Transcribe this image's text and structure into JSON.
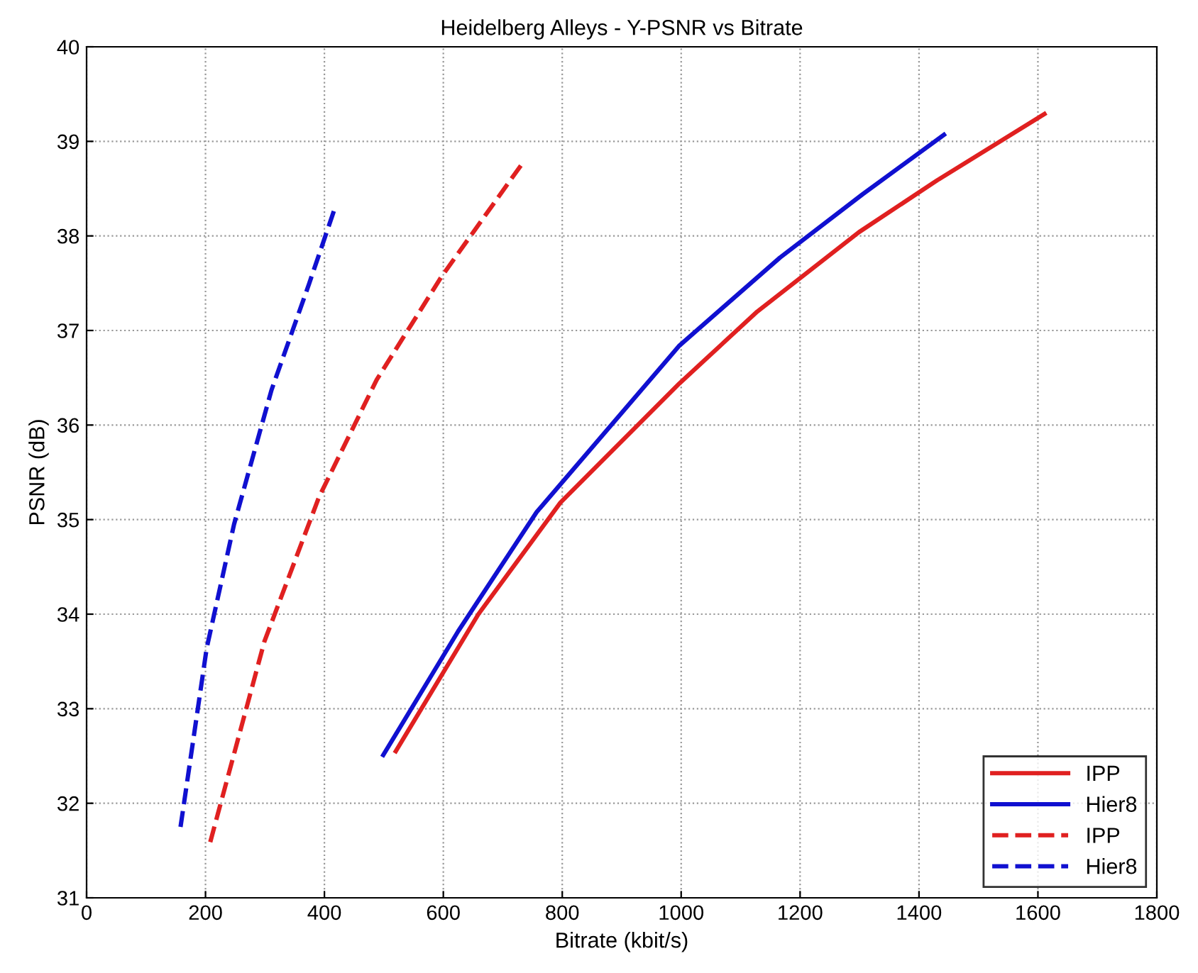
{
  "chart_data": {
    "type": "line",
    "title": "Heidelberg Alleys - Y-PSNR vs Bitrate",
    "xlabel": "Bitrate (kbit/s)",
    "ylabel": "PSNR (dB)",
    "xlim": [
      0,
      1800
    ],
    "xticks": [
      0,
      200,
      400,
      600,
      800,
      1000,
      1200,
      1400,
      1600,
      1800
    ],
    "ylim": [
      31,
      40
    ],
    "yticks": [
      31,
      32,
      33,
      34,
      35,
      36,
      37,
      38,
      39,
      40
    ],
    "grid": true,
    "legend": "bottom right",
    "marker": "none",
    "series": [
      {
        "name": "IPP",
        "color": "#e02020",
        "line_style": "solid",
        "x": [
          520,
          659,
          797,
          997,
          1128,
          1299,
          1431,
          1611
        ],
        "values": [
          32.55,
          34.0,
          35.18,
          36.44,
          37.2,
          38.04,
          38.59,
          39.29
        ]
      },
      {
        "name": "Hier8",
        "color": "#1010d0",
        "line_style": "solid",
        "x": [
          499,
          625,
          757,
          997,
          1166,
          1305,
          1442
        ],
        "values": [
          32.51,
          33.82,
          35.08,
          36.84,
          37.77,
          38.44,
          39.07
        ]
      },
      {
        "name": "IPP",
        "color": "#e02020",
        "line_style": "dashed",
        "x": [
          208,
          299,
          391,
          488,
          597,
          731
        ],
        "values": [
          31.59,
          33.71,
          35.24,
          36.48,
          37.57,
          38.75
        ]
      },
      {
        "name": "Hier8",
        "color": "#1010d0",
        "line_style": "dashed",
        "x": [
          158,
          202,
          248,
          311,
          374,
          419
        ],
        "values": [
          31.75,
          33.64,
          34.95,
          36.37,
          37.49,
          38.32
        ]
      }
    ]
  }
}
